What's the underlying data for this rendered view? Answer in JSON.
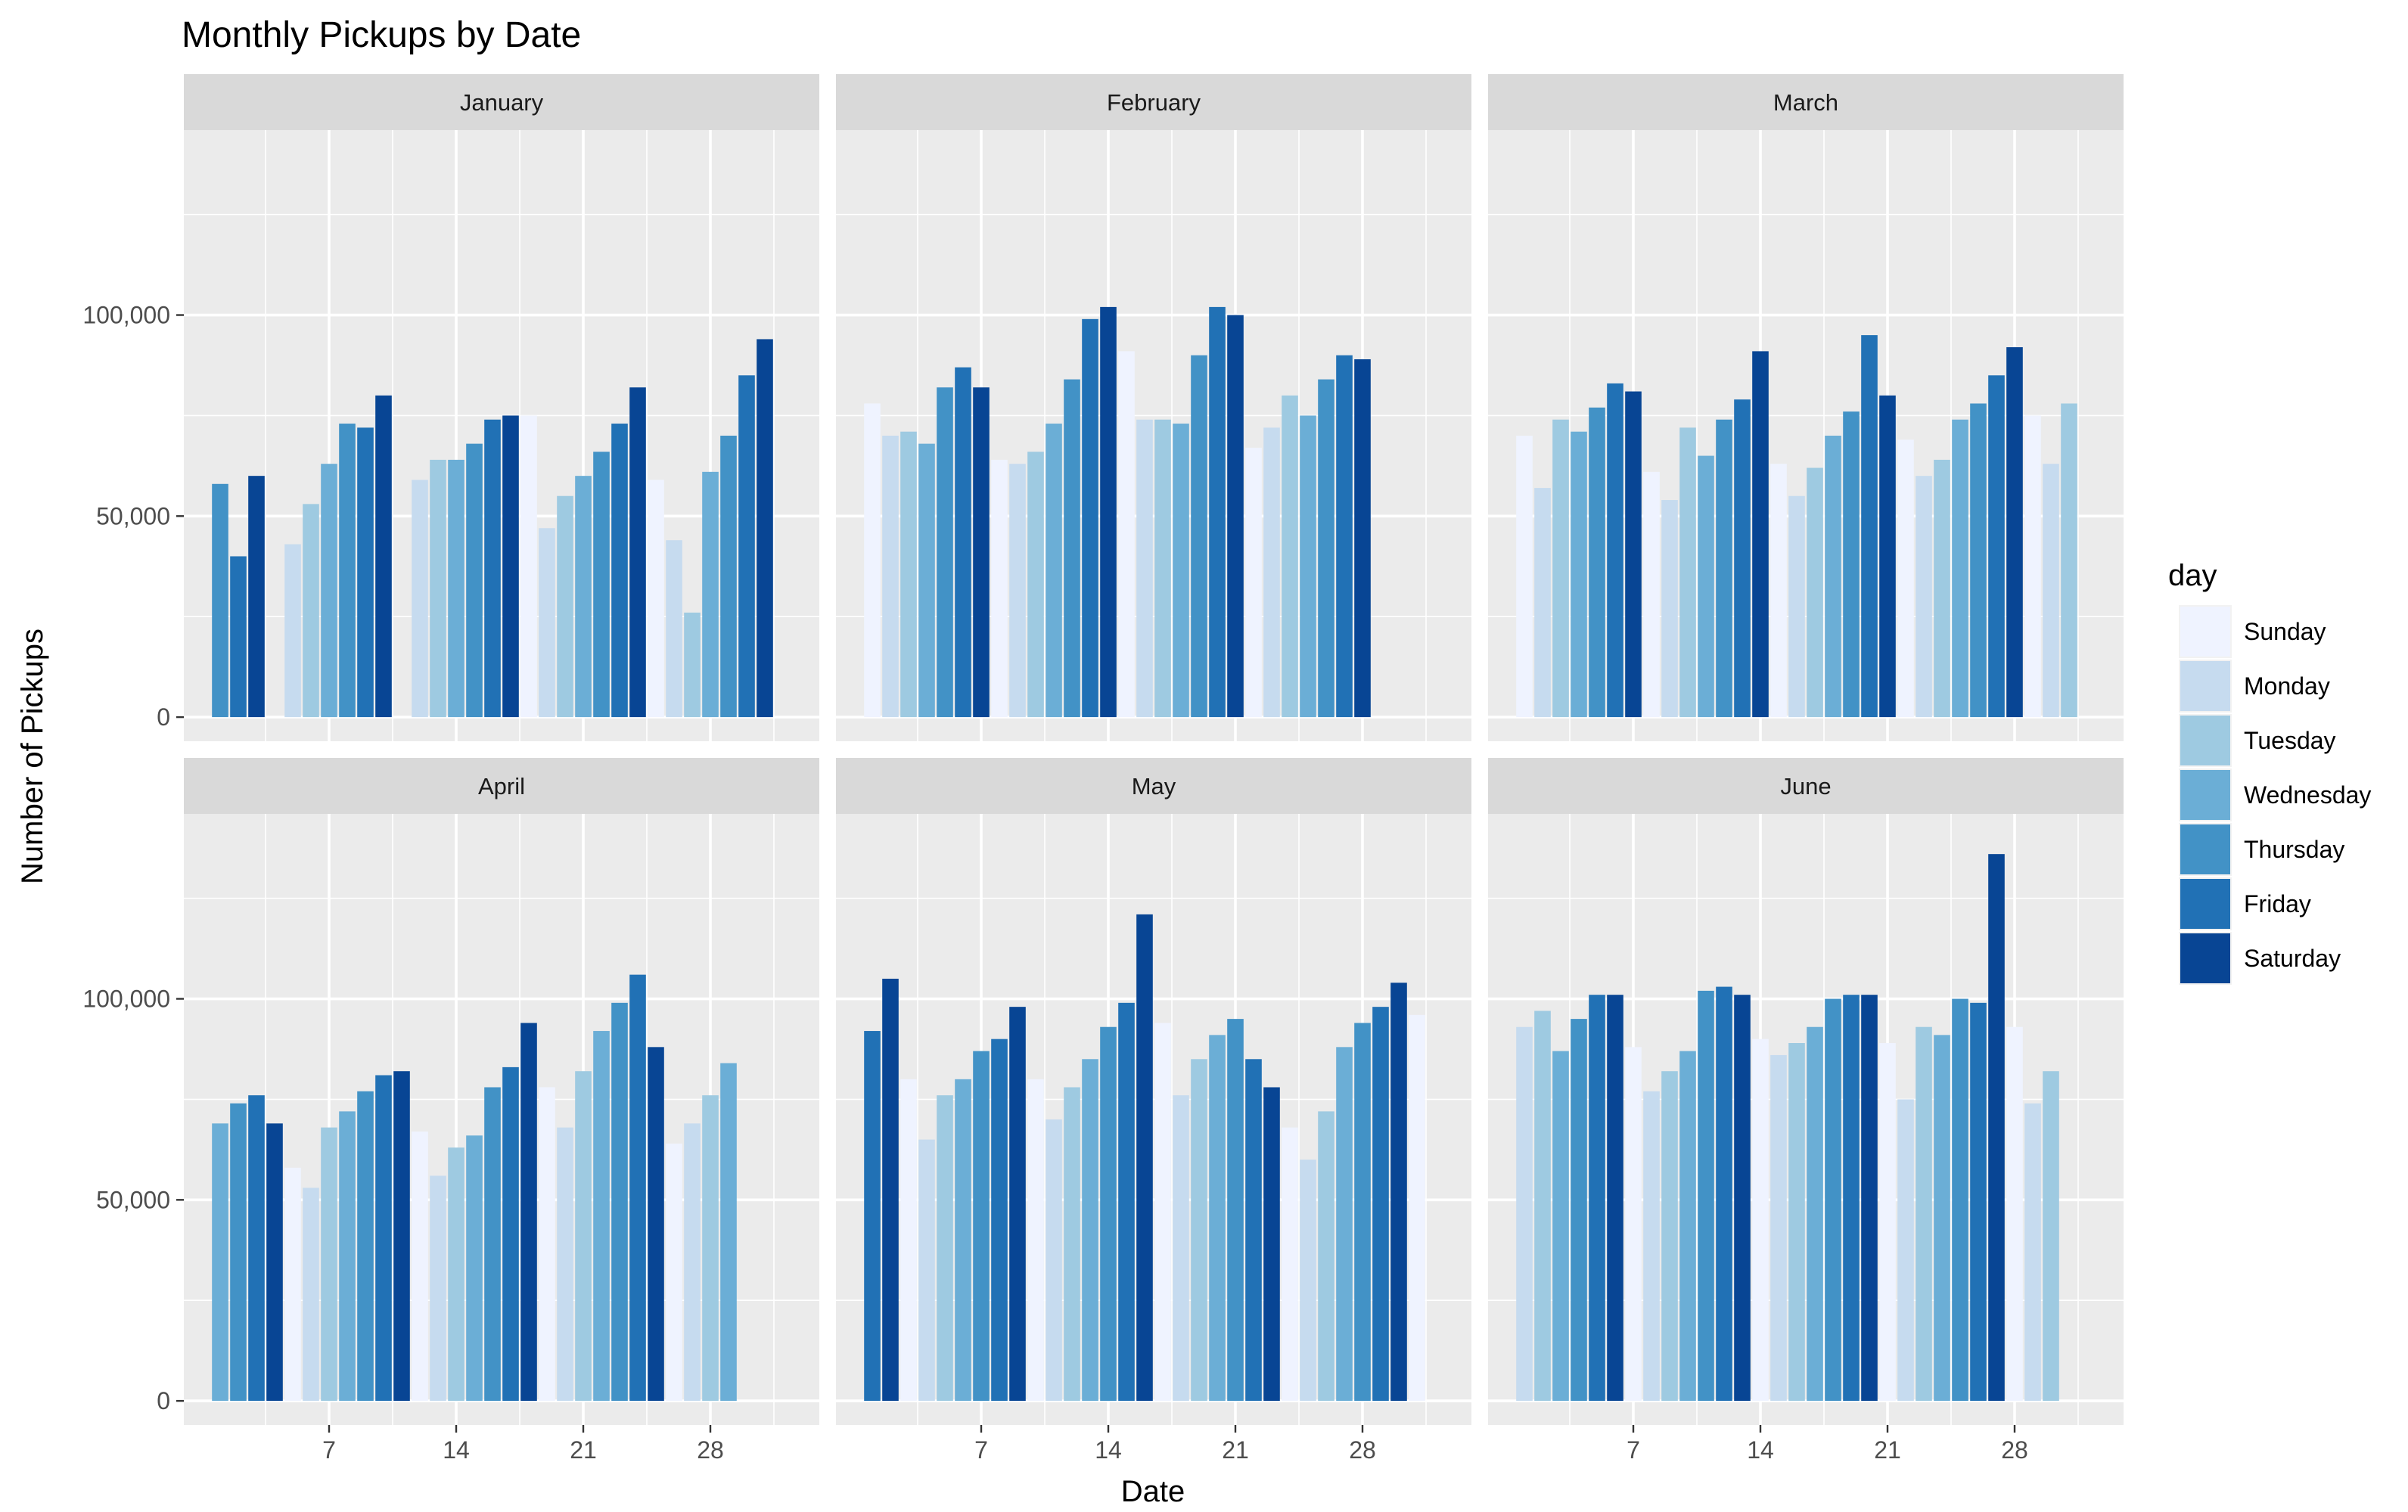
{
  "chart_data": {
    "type": "bar",
    "title": "Monthly Pickups by Date",
    "xlabel": "Date",
    "ylabel": "Number of Pickups",
    "x_range": [
      -1,
      34
    ],
    "x_ticks": [
      7,
      14,
      21,
      28
    ],
    "x_tick_labels": [
      "7",
      "14",
      "21",
      "28"
    ],
    "ylim": [
      -6000,
      146000
    ],
    "y_ticks": [
      0,
      50000,
      100000
    ],
    "y_tick_labels": [
      "0",
      "50,000",
      "100,000"
    ],
    "grid": true,
    "legend": {
      "title": "day",
      "position": "right",
      "entries": [
        {
          "name": "Sunday",
          "color": "#EFF3FF"
        },
        {
          "name": "Monday",
          "color": "#C6DBEF"
        },
        {
          "name": "Tuesday",
          "color": "#9ECAE1"
        },
        {
          "name": "Wednesday",
          "color": "#6BAED6"
        },
        {
          "name": "Thursday",
          "color": "#4292C6"
        },
        {
          "name": "Friday",
          "color": "#2171B5"
        },
        {
          "name": "Saturday",
          "color": "#084594"
        }
      ]
    },
    "panels": [
      {
        "month": "January",
        "first_weekday": 4,
        "values": [
          58000,
          40000,
          60000,
          0,
          43000,
          53000,
          63000,
          73000,
          72000,
          80000,
          0,
          59000,
          64000,
          64000,
          68000,
          74000,
          75000,
          75000,
          47000,
          55000,
          60000,
          66000,
          73000,
          82000,
          59000,
          44000,
          26000,
          61000,
          70000,
          85000,
          94000
        ]
      },
      {
        "month": "February",
        "first_weekday": 0,
        "values": [
          78000,
          70000,
          71000,
          68000,
          82000,
          87000,
          82000,
          64000,
          63000,
          66000,
          73000,
          84000,
          99000,
          102000,
          91000,
          74000,
          74000,
          73000,
          90000,
          102000,
          100000,
          67000,
          72000,
          80000,
          75000,
          84000,
          90000,
          89000
        ]
      },
      {
        "month": "March",
        "first_weekday": 0,
        "values": [
          70000,
          57000,
          74000,
          71000,
          77000,
          83000,
          81000,
          61000,
          54000,
          72000,
          65000,
          74000,
          79000,
          91000,
          63000,
          55000,
          62000,
          70000,
          76000,
          95000,
          80000,
          69000,
          60000,
          64000,
          74000,
          78000,
          85000,
          92000,
          75000,
          63000,
          78000
        ]
      },
      {
        "month": "April",
        "first_weekday": 3,
        "values": [
          69000,
          74000,
          76000,
          69000,
          58000,
          53000,
          68000,
          72000,
          77000,
          81000,
          82000,
          67000,
          56000,
          63000,
          66000,
          78000,
          83000,
          94000,
          78000,
          68000,
          82000,
          92000,
          99000,
          106000,
          88000,
          64000,
          69000,
          76000,
          84000,
          0
        ]
      },
      {
        "month": "May",
        "first_weekday": 5,
        "values": [
          92000,
          105000,
          80000,
          65000,
          76000,
          80000,
          87000,
          90000,
          98000,
          80000,
          70000,
          78000,
          85000,
          93000,
          99000,
          121000,
          94000,
          76000,
          85000,
          91000,
          95000,
          85000,
          78000,
          68000,
          60000,
          72000,
          88000,
          94000,
          98000,
          104000,
          96000
        ]
      },
      {
        "month": "June",
        "first_weekday": 1,
        "values": [
          93000,
          97000,
          87000,
          95000,
          101000,
          101000,
          88000,
          77000,
          82000,
          87000,
          102000,
          103000,
          101000,
          90000,
          86000,
          89000,
          93000,
          100000,
          101000,
          101000,
          89000,
          75000,
          93000,
          91000,
          100000,
          99000,
          136000,
          93000,
          74000,
          82000
        ]
      }
    ]
  }
}
